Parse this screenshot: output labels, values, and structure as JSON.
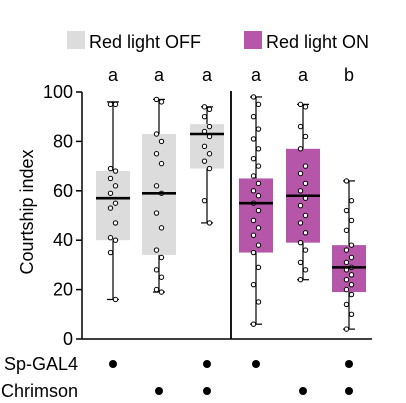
{
  "chart_data": {
    "type": "box",
    "ylabel": "Courtship index",
    "ylim": [
      0,
      100
    ],
    "yticks": [
      0,
      20,
      40,
      60,
      80,
      100
    ],
    "grid": false,
    "legend_position": "top",
    "legend": [
      {
        "label": "Red light OFF",
        "color": "#dcdcdc"
      },
      {
        "label": "Red light ON",
        "color": "#b556a8"
      }
    ],
    "groups": [
      {
        "condition": "Red light OFF",
        "significance": "a",
        "whisker_low": 16,
        "q1": 40,
        "median": 57,
        "q3": 68,
        "whisker_high": 96,
        "points": [
          95,
          95,
          69,
          68,
          65,
          62,
          59,
          55,
          53,
          47,
          41,
          40,
          35,
          16
        ]
      },
      {
        "condition": "Red light OFF",
        "significance": "a",
        "whisker_low": 19,
        "q1": 34,
        "median": 59,
        "q3": 83,
        "whisker_high": 97,
        "points": [
          97,
          96,
          83,
          80,
          75,
          71,
          62,
          59,
          51,
          45,
          36,
          33,
          28,
          25,
          20,
          19
        ]
      },
      {
        "condition": "Red light OFF",
        "significance": "a",
        "whisker_low": 47,
        "q1": 69,
        "median": 83,
        "q3": 87,
        "whisker_high": 94,
        "points": [
          94,
          93,
          90,
          86,
          84,
          82,
          78,
          75,
          72,
          69,
          56,
          47
        ]
      },
      {
        "condition": "Red light ON",
        "significance": "a",
        "whisker_low": 6,
        "q1": 35,
        "median": 55,
        "q3": 65,
        "whisker_high": 98,
        "points": [
          98,
          95,
          90,
          85,
          81,
          77,
          73,
          70,
          66,
          63,
          60,
          58,
          55,
          52,
          48,
          45,
          42,
          38,
          35,
          29,
          22,
          15,
          6
        ]
      },
      {
        "condition": "Red light ON",
        "significance": "a",
        "whisker_low": 24,
        "q1": 39,
        "median": 58,
        "q3": 77,
        "whisker_high": 95,
        "points": [
          95,
          94,
          86,
          82,
          77,
          70,
          67,
          63,
          60,
          57,
          54,
          50,
          47,
          43,
          39,
          36,
          31,
          28,
          24
        ]
      },
      {
        "condition": "Red light ON",
        "significance": "b",
        "whisker_low": 4,
        "q1": 19,
        "median": 29,
        "q3": 38,
        "whisker_high": 64,
        "points": [
          64,
          56,
          52,
          48,
          44,
          38,
          36,
          33,
          31,
          29,
          28,
          26,
          24,
          22,
          20,
          18,
          14,
          10,
          4
        ]
      }
    ],
    "genotype_rows": [
      {
        "label": "Sp-GAL4",
        "present": [
          true,
          false,
          true,
          true,
          false,
          true
        ]
      },
      {
        "label": "Chrimson",
        "present": [
          false,
          true,
          true,
          false,
          true,
          true
        ]
      }
    ]
  }
}
